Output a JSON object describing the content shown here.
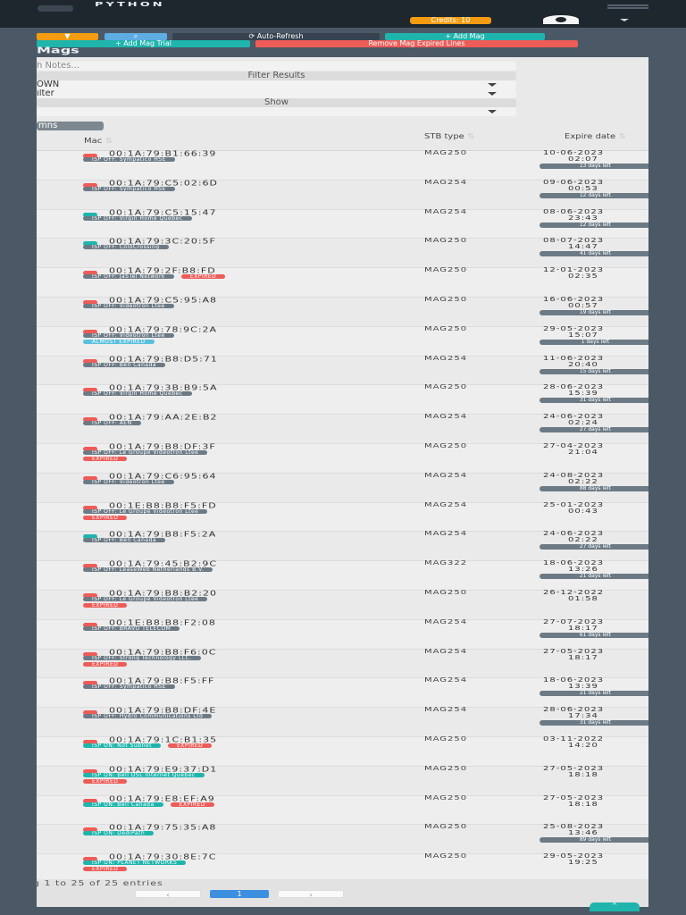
{
  "header": {
    "brand": "PYTHON",
    "credits": "Credits: 10"
  },
  "toolbar": {
    "auto_refresh": "⟳ Auto-Refresh",
    "add_mag": "+ Add Mag",
    "add_mag_trial": "+ Add Mag Trial",
    "remove_expired": "Remove Mag Expired Lines"
  },
  "panel": {
    "title": "Mags",
    "notes_placeholder": "h Notes...",
    "filter_results": "Filter Results",
    "select1": "OWN",
    "select2": "ilter",
    "show": "Show",
    "columns": "mns"
  },
  "table": {
    "headers": {
      "mac": "Mac",
      "stb": "STB type",
      "expire": "Expire date"
    },
    "rows": [
      {
        "id": "3",
        "dot": "red",
        "mac": "00:1A:79:B1:66:39",
        "badges": [
          {
            "t": "ISP OFF: Sympatico HSE",
            "c": "grey"
          }
        ],
        "status": [],
        "stb": "MAG250",
        "date": "10-06-2023",
        "time": "02:07",
        "left": "13 days left"
      },
      {
        "id": "7",
        "dot": "red",
        "mac": "00:1A:79:C5:02:6D",
        "badges": [
          {
            "t": "ISP OFF: Sympatico HSE",
            "c": "grey"
          }
        ],
        "status": [],
        "stb": "MAG254",
        "date": "09-06-2023",
        "time": "00:53",
        "left": "12 days left"
      },
      {
        "id": "7",
        "dot": "teal",
        "mac": "00:1A:79:C5:15:47",
        "badges": [
          {
            "t": "ISP OFF: Virgin Home Quebec",
            "c": "grey"
          }
        ],
        "status": [],
        "stb": "MAG254",
        "date": "08-06-2023",
        "time": "23:43",
        "left": "12 days left"
      },
      {
        "id": "6",
        "dot": "teal",
        "mac": "00:1A:79:3C:20:5F",
        "badges": [
          {
            "t": "ISP OFF: ColoCrossing",
            "c": "grey"
          }
        ],
        "status": [],
        "stb": "MAG250",
        "date": "08-07-2023",
        "time": "14:47",
        "left": "41 days left"
      },
      {
        "id": "4",
        "dot": "red",
        "mac": "00:1A:79:2F:B8:FD",
        "badges": [
          {
            "t": "ISP OFF: JaSTel Network",
            "c": "grey"
          },
          {
            "t": "EXPIRED",
            "c": "red"
          }
        ],
        "status": [],
        "stb": "MAG250",
        "date": "12-01-2023",
        "time": "02:35",
        "left": ""
      },
      {
        "id": "7",
        "dot": "red",
        "mac": "00:1A:79:C5:95:A8",
        "badges": [
          {
            "t": "ISP OFF: Videotron Ltee",
            "c": "grey"
          }
        ],
        "status": [],
        "stb": "MAG250",
        "date": "16-06-2023",
        "time": "00:57",
        "left": "19 days left"
      },
      {
        "id": "1",
        "dot": "red",
        "mac": "00:1A:79:78:9C:2A",
        "badges": [
          {
            "t": "ISP OFF: Videotron Ltee",
            "c": "grey"
          }
        ],
        "status": [
          {
            "t": "ALMOST EXPIRED",
            "c": "blue"
          }
        ],
        "stb": "MAG250",
        "date": "29-05-2023",
        "time": "15:07",
        "left": "1 days left"
      },
      {
        "id": "2",
        "dot": "red",
        "mac": "00:1A:79:B8:D5:71",
        "badges": [
          {
            "t": "ISP OFF: Bell Canada",
            "c": "grey"
          }
        ],
        "status": [],
        "stb": "MAG254",
        "date": "11-06-2023",
        "time": "20:40",
        "left": "15 days left"
      },
      {
        "id": "4",
        "dot": "red",
        "mac": "00:1A:79:3B:B9:5A",
        "badges": [
          {
            "t": "ISP OFF: Virgin Home Quebec",
            "c": "grey"
          }
        ],
        "status": [],
        "stb": "MAG250",
        "date": "28-06-2023",
        "time": "15:39",
        "left": "31 days left"
      },
      {
        "id": "4",
        "dot": "red",
        "mac": "00:1A:79:AA:2E:B2",
        "badges": [
          {
            "t": "ISP OFF: AEN",
            "c": "grey"
          }
        ],
        "status": [],
        "stb": "MAG254",
        "date": "24-06-2023",
        "time": "02:24",
        "left": "27 days left"
      },
      {
        "id": "1",
        "dot": "red",
        "mac": "00:1A:79:B8:DF:3F",
        "badges": [
          {
            "t": "ISP OFF: Le Groupe Videotron Ltee",
            "c": "grey"
          }
        ],
        "status": [
          {
            "t": "EXPIRED",
            "c": "red"
          }
        ],
        "stb": "MAG250",
        "date": "27-04-2023",
        "time": "21:04",
        "left": ""
      },
      {
        "id": "7",
        "dot": "red",
        "mac": "00:1A:79:C6:95:64",
        "badges": [
          {
            "t": "ISP OFF: Videotron Ltee",
            "c": "grey"
          }
        ],
        "status": [],
        "stb": "MAG254",
        "date": "24-08-2023",
        "time": "02:22",
        "left": "88 days left"
      },
      {
        "id": "0",
        "dot": "red",
        "mac": "00:1E:B8:B8:F5:FD",
        "badges": [
          {
            "t": "ISP OFF: Le Groupe Videotron Ltee",
            "c": "grey"
          }
        ],
        "status": [
          {
            "t": "EXPIRED",
            "c": "red"
          }
        ],
        "stb": "MAG254",
        "date": "25-01-2023",
        "time": "00:43",
        "left": ""
      },
      {
        "id": "6",
        "dot": "teal",
        "mac": "00:1A:79:B8:F5:2A",
        "badges": [
          {
            "t": "ISP OFF: Bell Canada",
            "c": "grey"
          }
        ],
        "status": [],
        "stb": "MAG254",
        "date": "24-06-2023",
        "time": "02:22",
        "left": "27 days left"
      },
      {
        "id": "2",
        "dot": "red",
        "mac": "00:1A:79:45:B2:9C",
        "badges": [
          {
            "t": "ISP OFF: LeaseWeb Netherlands B.V.",
            "c": "grey"
          }
        ],
        "status": [],
        "stb": "MAG322",
        "date": "18-06-2023",
        "time": "13:26",
        "left": "21 days left"
      },
      {
        "id": "5",
        "dot": "red",
        "mac": "00:1A:79:B8:B2:20",
        "badges": [
          {
            "t": "ISP OFF: Le Groupe Videotron Ltee",
            "c": "grey"
          }
        ],
        "status": [
          {
            "t": "EXPIRED",
            "c": "red"
          }
        ],
        "stb": "MAG250",
        "date": "26-12-2022",
        "time": "01:58",
        "left": ""
      },
      {
        "id": "9",
        "dot": "red",
        "mac": "00:1E:B8:B8:F2:08",
        "badges": [
          {
            "t": "ISP OFF: BRAVO TELECOM",
            "c": "grey"
          }
        ],
        "status": [],
        "stb": "MAG254",
        "date": "27-07-2023",
        "time": "18:17",
        "left": "61 days left"
      },
      {
        "id": "5",
        "dot": "red",
        "mac": "00:1A:79:B8:F6:0C",
        "badges": [
          {
            "t": "ISP OFF: Strong Technology LLC.",
            "c": "grey"
          }
        ],
        "status": [
          {
            "t": "EXPIRED",
            "c": "red"
          }
        ],
        "stb": "MAG254",
        "date": "27-05-2023",
        "time": "18:17",
        "left": ""
      },
      {
        "id": "6",
        "dot": "red",
        "mac": "00:1A:79:B8:F5:FF",
        "badges": [
          {
            "t": "ISP OFF: Sympatico HSE",
            "c": "grey"
          }
        ],
        "status": [],
        "stb": "MAG254",
        "date": "18-06-2023",
        "time": "13:39",
        "left": "21 days left"
      },
      {
        "id": "6",
        "dot": "red",
        "mac": "00:1A:79:B8:DF:4E",
        "badges": [
          {
            "t": "ISP OFF: Hydro Communications Ltd",
            "c": "grey"
          }
        ],
        "status": [],
        "stb": "MAG254",
        "date": "28-06-2023",
        "time": "17:34",
        "left": "31 days left"
      },
      {
        "id": "9",
        "dot": "red",
        "mac": "00:1A:79:1C:B1:35",
        "badges": [
          {
            "t": "ISP ON: Not Subnet",
            "c": "teal"
          },
          {
            "t": "EXPIRED",
            "c": "red"
          }
        ],
        "status": [],
        "stb": "MAG250",
        "date": "03-11-2022",
        "time": "14:20",
        "left": ""
      },
      {
        "id": "5",
        "dot": "red",
        "mac": "00:1A:79:E9:37:D1",
        "badges": [
          {
            "t": "ISP ON: Bell DSL Internet Quebec",
            "c": "teal"
          }
        ],
        "status": [
          {
            "t": "EXPIRED",
            "c": "red"
          }
        ],
        "stb": "MAG250",
        "date": "27-05-2023",
        "time": "18:18",
        "left": ""
      },
      {
        "id": "4",
        "dot": "red",
        "mac": "00:1A:79:E8:EF:A9",
        "badges": [
          {
            "t": "ISP ON: Bell Canada",
            "c": "teal"
          },
          {
            "t": "EXPIRED",
            "c": "red"
          }
        ],
        "status": [],
        "stb": "MAG250",
        "date": "27-05-2023",
        "time": "18:18",
        "left": ""
      },
      {
        "id": "9",
        "dot": "red",
        "mac": "00:1A:79:75:35:A8",
        "badges": [
          {
            "t": "ISP ON: DediPath",
            "c": "teal"
          }
        ],
        "status": [],
        "stb": "MAG250",
        "date": "25-08-2023",
        "time": "13:46",
        "left": "89 days left"
      },
      {
        "id": "4",
        "dot": "red",
        "mac": "00:1A:79:30:8E:7C",
        "badges": [
          {
            "t": "ISP ON: PLANET NETWORKS",
            "c": "teal"
          }
        ],
        "status": [
          {
            "t": "EXPIRED",
            "c": "red"
          }
        ],
        "stb": "MAG250",
        "date": "29-05-2023",
        "time": "19:25",
        "left": ""
      }
    ]
  },
  "footer": {
    "info": "g 1 to 25 of 25 entries",
    "prev": "‹",
    "page": "1",
    "next": "›"
  },
  "scroll_top": "^",
  "colors": {
    "grey": "#6c7a85",
    "teal": "#1fb5ac",
    "red": "#ee5c58",
    "blue": "#5bc0de",
    "orange": "#f39c12"
  }
}
